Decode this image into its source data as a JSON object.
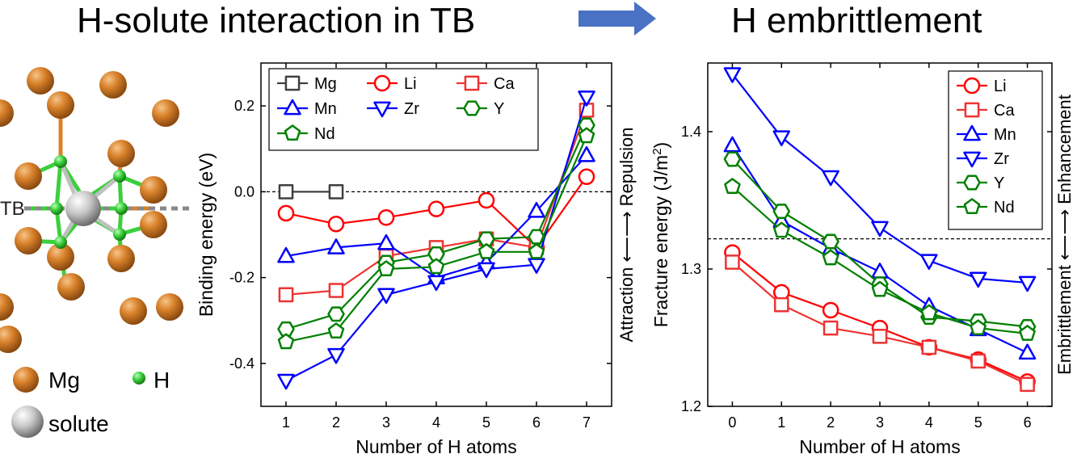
{
  "titles": {
    "left": "H-solute interaction in TB",
    "right": "H embrittlement"
  },
  "structure_panel": {
    "tb_label": "TB",
    "legend": [
      {
        "label": "Mg",
        "color": "#d9822b"
      },
      {
        "label": "H",
        "color": "#3ccf3c"
      },
      {
        "label": "solute",
        "color": "#b8b8b8"
      }
    ]
  },
  "colors": {
    "Mg": "#404040",
    "Li": "#ff0000",
    "Ca": "#ee3333",
    "Mn": "#0000ff",
    "Zr": "#0000ff",
    "Y": "#008000",
    "Nd": "#008000",
    "arrow": "#4a72c4"
  },
  "chart_data": [
    {
      "type": "line",
      "xlabel": "Number of H atoms",
      "ylabel": "Binding energy (eV)",
      "right_label": "Attraction ⟵⟶ Repulsion",
      "xticks": [
        "1",
        "2",
        "3",
        "4",
        "5",
        "6",
        "7"
      ],
      "xlim": [
        0.5,
        7.5
      ],
      "ylim": [
        -0.5,
        0.3
      ],
      "yticks": [
        0.2,
        0.0,
        -0.2,
        -0.4
      ],
      "ytick_labels": [
        "0.2",
        "0.0",
        "-0.2",
        "-0.4"
      ],
      "reference_line": 0.0,
      "legend_placement": "top-left",
      "series": [
        {
          "name": "Mg",
          "marker": "square",
          "color": "#404040",
          "x": [
            1,
            2
          ],
          "y": [
            0.0,
            0.0
          ]
        },
        {
          "name": "Li",
          "marker": "circle",
          "color": "#ff0000",
          "x": [
            1,
            2,
            3,
            4,
            5,
            6,
            7
          ],
          "y": [
            -0.05,
            -0.075,
            -0.06,
            -0.04,
            -0.02,
            -0.13,
            0.035
          ]
        },
        {
          "name": "Ca",
          "marker": "square",
          "color": "#ee3333",
          "x": [
            1,
            2,
            3,
            4,
            5,
            6,
            7
          ],
          "y": [
            -0.24,
            -0.23,
            -0.15,
            -0.13,
            -0.11,
            -0.13,
            0.19
          ]
        },
        {
          "name": "Mn",
          "marker": "triangle-up",
          "color": "#0000ff",
          "x": [
            1,
            2,
            3,
            4,
            5,
            6,
            7
          ],
          "y": [
            -0.15,
            -0.13,
            -0.12,
            -0.2,
            -0.165,
            -0.045,
            0.085
          ]
        },
        {
          "name": "Zr",
          "marker": "triangle-down",
          "color": "#0000ff",
          "x": [
            1,
            2,
            3,
            4,
            5,
            6,
            7
          ],
          "y": [
            -0.44,
            -0.38,
            -0.24,
            -0.21,
            -0.18,
            -0.17,
            0.22
          ]
        },
        {
          "name": "Y",
          "marker": "hexagon",
          "color": "#008000",
          "x": [
            1,
            2,
            3,
            4,
            5,
            6,
            7
          ],
          "y": [
            -0.32,
            -0.285,
            -0.165,
            -0.145,
            -0.11,
            -0.105,
            0.155
          ]
        },
        {
          "name": "Nd",
          "marker": "pentagon",
          "color": "#008000",
          "x": [
            1,
            2,
            3,
            4,
            5,
            6,
            7
          ],
          "y": [
            -0.35,
            -0.325,
            -0.18,
            -0.175,
            -0.14,
            -0.14,
            0.13
          ]
        }
      ]
    },
    {
      "type": "line",
      "xlabel": "Number of H atoms",
      "ylabel": "Fracture energy (J/m",
      "ylabel_sup": "2",
      "ylabel_end": ")",
      "right_label": "Embrittlement ⟵⟶ Enhancement",
      "xticks": [
        "0",
        "1",
        "2",
        "3",
        "4",
        "5",
        "6"
      ],
      "xlim": [
        -0.5,
        6.5
      ],
      "ylim": [
        1.2,
        1.45
      ],
      "yticks": [
        1.2,
        1.3,
        1.4
      ],
      "ytick_labels": [
        "1.2",
        "1.3",
        "1.4"
      ],
      "reference_line": 1.322,
      "legend_placement": "top-right",
      "series": [
        {
          "name": "Li",
          "marker": "circle",
          "color": "#ff0000",
          "x": [
            0,
            1,
            2,
            3,
            4,
            5,
            6
          ],
          "y": [
            1.312,
            1.283,
            1.27,
            1.257,
            1.243,
            1.234,
            1.218
          ]
        },
        {
          "name": "Ca",
          "marker": "square",
          "color": "#ee3333",
          "x": [
            0,
            1,
            2,
            3,
            4,
            5,
            6
          ],
          "y": [
            1.305,
            1.274,
            1.257,
            1.251,
            1.243,
            1.233,
            1.216
          ]
        },
        {
          "name": "Mn",
          "marker": "triangle-up",
          "color": "#0000ff",
          "x": [
            0,
            1,
            2,
            3,
            4,
            5,
            6
          ],
          "y": [
            1.39,
            1.335,
            1.315,
            1.298,
            1.273,
            1.256,
            1.239
          ]
        },
        {
          "name": "Zr",
          "marker": "triangle-down",
          "color": "#0000ff",
          "x": [
            0,
            1,
            2,
            3,
            4,
            5,
            6
          ],
          "y": [
            1.442,
            1.396,
            1.367,
            1.33,
            1.306,
            1.293,
            1.29
          ]
        },
        {
          "name": "Y",
          "marker": "hexagon",
          "color": "#008000",
          "x": [
            0,
            1,
            2,
            3,
            4,
            5,
            6
          ],
          "y": [
            1.38,
            1.342,
            1.32,
            1.289,
            1.265,
            1.262,
            1.258
          ]
        },
        {
          "name": "Nd",
          "marker": "pentagon",
          "color": "#008000",
          "x": [
            0,
            1,
            2,
            3,
            4,
            5,
            6
          ],
          "y": [
            1.36,
            1.328,
            1.308,
            1.285,
            1.268,
            1.257,
            1.253
          ]
        }
      ]
    }
  ]
}
